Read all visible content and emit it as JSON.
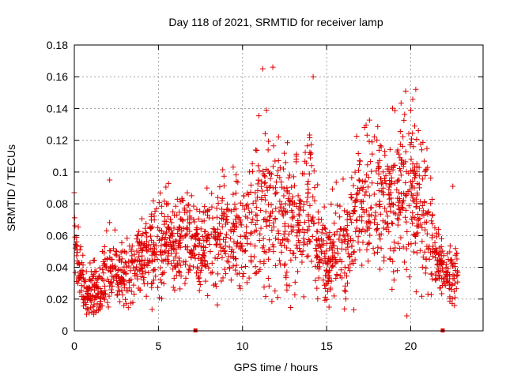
{
  "chart_data": {
    "type": "scatter",
    "title": "Day 118 of 2021, SRMTID for receiver lamp",
    "xlabel": "GPS time / hours",
    "ylabel": "SRMTID / TECUs",
    "xlim": [
      0,
      24.3
    ],
    "ylim": [
      0,
      0.18
    ],
    "xticks": [
      0,
      5,
      10,
      15,
      20
    ],
    "xtick_labels": [
      "0",
      "5",
      "10",
      "15",
      "20"
    ],
    "yticks": [
      0,
      0.02,
      0.04,
      0.06,
      0.08,
      0.1,
      0.12,
      0.14,
      0.16,
      0.18
    ],
    "ytick_labels": [
      "0",
      "0.02",
      "0.04",
      "0.06",
      "0.08",
      "0.1",
      "0.12",
      "0.14",
      "0.16",
      "0.18"
    ],
    "grid": true,
    "marker": "+",
    "color": "#dd0000",
    "gap_markers_x": [
      7.2,
      21.9
    ],
    "series": [
      {
        "name": "SRMTID",
        "envelope": {
          "x": [
            0.0,
            0.3,
            0.6,
            1.0,
            1.5,
            2.0,
            2.5,
            3.0,
            3.5,
            4.0,
            5.0,
            6.0,
            7.0,
            7.5,
            8.0,
            9.0,
            10.0,
            10.5,
            11.0,
            11.5,
            12.0,
            12.5,
            13.0,
            13.5,
            14.0,
            14.5,
            15.0,
            15.5,
            16.0,
            16.5,
            17.0,
            17.5,
            18.0,
            18.5,
            19.0,
            19.5,
            20.0,
            20.5,
            21.0,
            21.5,
            22.0,
            22.5,
            22.8
          ],
          "mean": [
            0.06,
            0.04,
            0.025,
            0.025,
            0.028,
            0.04,
            0.035,
            0.032,
            0.042,
            0.048,
            0.052,
            0.06,
            0.058,
            0.05,
            0.06,
            0.065,
            0.06,
            0.068,
            0.08,
            0.075,
            0.07,
            0.072,
            0.065,
            0.07,
            0.075,
            0.06,
            0.045,
            0.05,
            0.055,
            0.06,
            0.075,
            0.08,
            0.08,
            0.085,
            0.08,
            0.088,
            0.085,
            0.09,
            0.07,
            0.045,
            0.035,
            0.035,
            0.04
          ],
          "spread": [
            0.018,
            0.014,
            0.009,
            0.01,
            0.01,
            0.014,
            0.012,
            0.011,
            0.014,
            0.016,
            0.018,
            0.02,
            0.018,
            0.016,
            0.02,
            0.024,
            0.024,
            0.028,
            0.034,
            0.032,
            0.03,
            0.03,
            0.026,
            0.028,
            0.034,
            0.026,
            0.016,
            0.018,
            0.02,
            0.024,
            0.028,
            0.026,
            0.028,
            0.026,
            0.028,
            0.03,
            0.032,
            0.03,
            0.028,
            0.012,
            0.01,
            0.012,
            0.012
          ]
        },
        "point_count": 1900,
        "notable_points": [
          {
            "x": 0.0,
            "y": 0.087
          },
          {
            "x": 2.1,
            "y": 0.095
          },
          {
            "x": 11.2,
            "y": 0.165
          },
          {
            "x": 11.8,
            "y": 0.166
          },
          {
            "x": 14.2,
            "y": 0.16
          },
          {
            "x": 19.7,
            "y": 0.151
          },
          {
            "x": 20.3,
            "y": 0.152
          },
          {
            "x": 20.0,
            "y": 0.139
          },
          {
            "x": 22.5,
            "y": 0.091
          },
          {
            "x": 22.6,
            "y": 0.016
          }
        ]
      }
    ]
  }
}
